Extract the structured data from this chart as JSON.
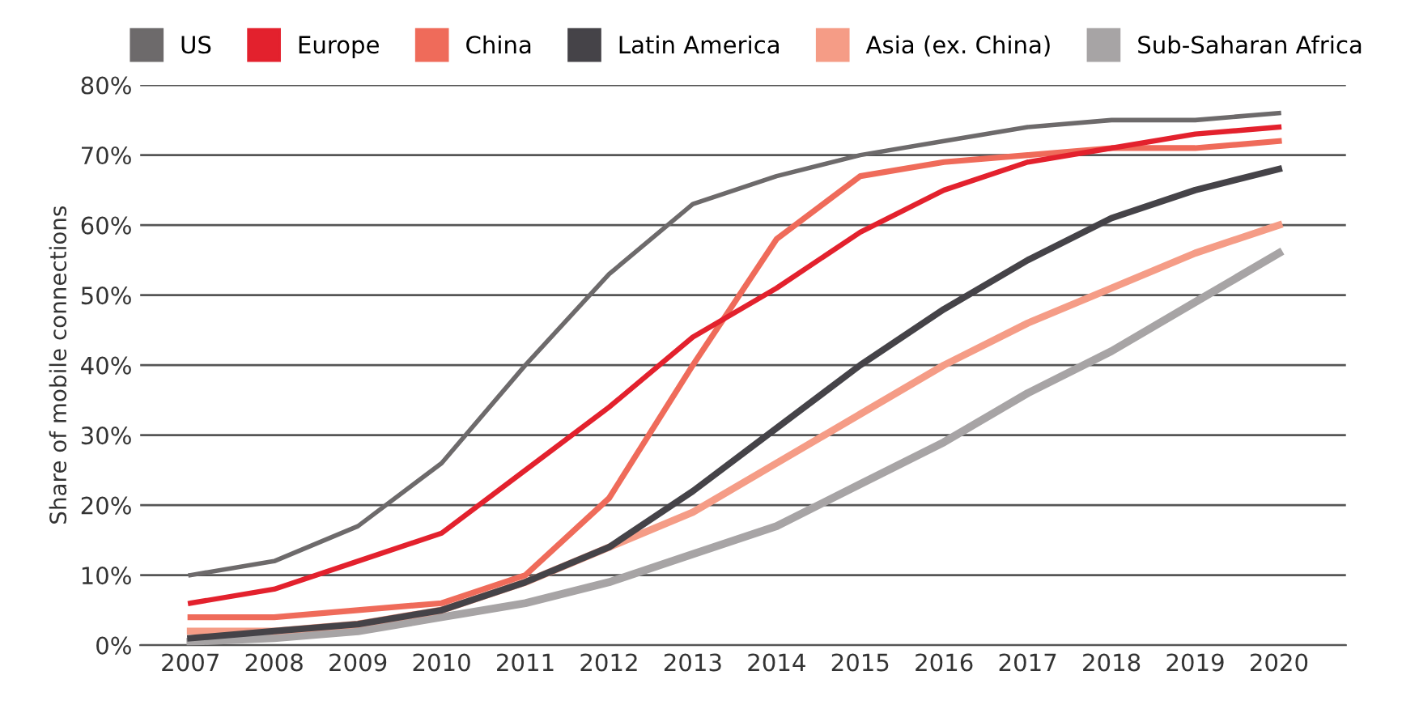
{
  "chart_data": {
    "type": "line",
    "ylabel": "Share of mobile connections",
    "categories": [
      "2007",
      "2008",
      "2009",
      "2010",
      "2011",
      "2012",
      "2013",
      "2014",
      "2015",
      "2016",
      "2017",
      "2018",
      "2019",
      "2020"
    ],
    "series": [
      {
        "name": "US",
        "color": "#6d6a6b",
        "values": [
          10,
          12,
          17,
          26,
          40,
          53,
          63,
          67,
          70,
          72,
          74,
          75,
          75,
          76
        ]
      },
      {
        "name": "Europe",
        "color": "#e3212d",
        "values": [
          6,
          8,
          12,
          16,
          25,
          34,
          44,
          51,
          59,
          65,
          69,
          71,
          73,
          74
        ]
      },
      {
        "name": "China",
        "color": "#ef6b5a",
        "values": [
          4,
          4,
          5,
          6,
          10,
          21,
          40,
          58,
          67,
          69,
          70,
          71,
          71,
          72
        ]
      },
      {
        "name": "Latin America",
        "color": "#454348",
        "values": [
          1,
          2,
          3,
          5,
          9,
          14,
          22,
          31,
          40,
          48,
          55,
          61,
          65,
          68
        ]
      },
      {
        "name": "Asia (ex. China)",
        "color": "#f59c86",
        "values": [
          2,
          2,
          3,
          5,
          9,
          14,
          19,
          26,
          33,
          40,
          46,
          51,
          56,
          60
        ]
      },
      {
        "name": "Sub-Saharan Africa",
        "color": "#a7a4a5",
        "values": [
          0.5,
          1,
          2,
          4,
          6,
          9,
          13,
          17,
          23,
          29,
          36,
          42,
          49,
          56
        ]
      }
    ],
    "ylim": [
      0,
      80
    ],
    "yticks": [
      {
        "value": 0,
        "label": "0%"
      },
      {
        "value": 10,
        "label": "10%"
      },
      {
        "value": 20,
        "label": "20%"
      },
      {
        "value": 30,
        "label": "30%"
      },
      {
        "value": 40,
        "label": "40%"
      },
      {
        "value": 50,
        "label": "50%"
      },
      {
        "value": 60,
        "label": "60%"
      },
      {
        "value": 70,
        "label": "70%"
      },
      {
        "value": 80,
        "label": "80%"
      }
    ],
    "grid": "y",
    "legend": "top",
    "marker": "none",
    "line_style": "solid"
  }
}
